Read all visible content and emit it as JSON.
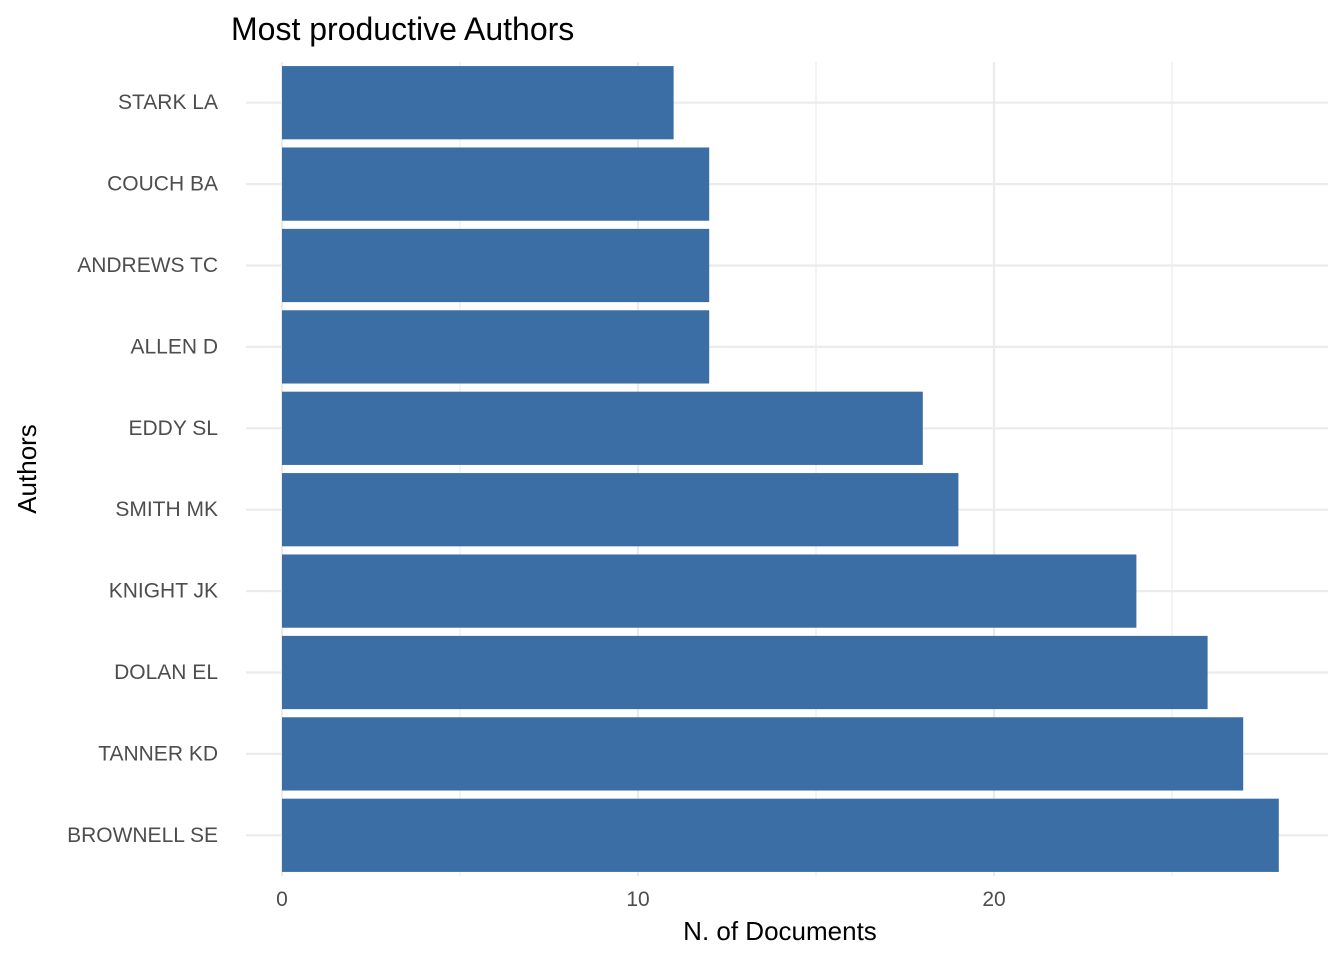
{
  "chart_data": {
    "type": "bar",
    "orientation": "horizontal",
    "title": "Most productive Authors",
    "xlabel": "N. of Documents",
    "ylabel": "Authors",
    "categories": [
      "BROWNELL SE",
      "TANNER KD",
      "DOLAN EL",
      "KNIGHT JK",
      "SMITH MK",
      "EDDY SL",
      "ALLEN D",
      "ANDREWS TC",
      "COUCH BA",
      "STARK LA"
    ],
    "values": [
      28,
      27,
      26,
      24,
      19,
      18,
      12,
      12,
      12,
      11
    ],
    "xlim": [
      0,
      29
    ],
    "xticks": [
      0,
      10,
      20
    ],
    "x_minor_ticks": [
      5,
      15,
      25
    ],
    "bar_color": "#3A6EA5",
    "grid": true,
    "legend": "none"
  }
}
